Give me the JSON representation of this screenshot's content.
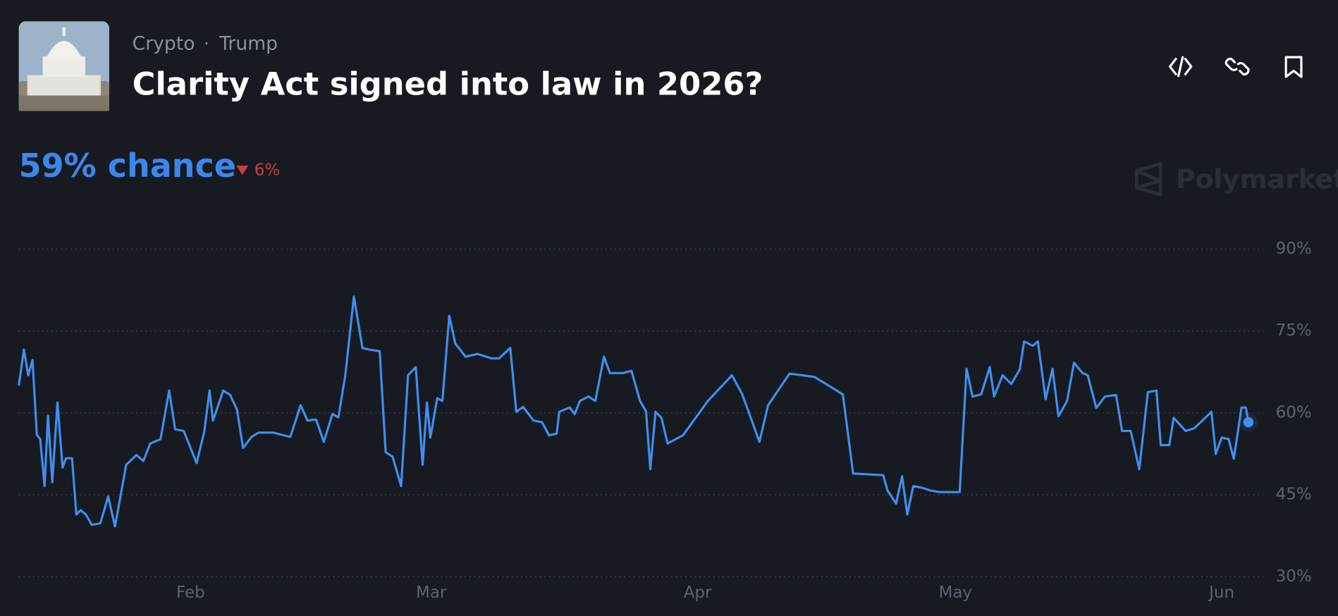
{
  "header": {
    "category": "Crypto",
    "tag": "Trump",
    "title": "Clarity Act signed into law in 2026?"
  },
  "summary": {
    "chance": "59% chance",
    "change": "6%"
  },
  "brand": "Polymarket",
  "chart_data": {
    "type": "line",
    "color": "#3f8ff0",
    "grid": true,
    "x": [
      0,
      0.6,
      1.1,
      1.6,
      2.1,
      2.5,
      3,
      3.4,
      3.9,
      4.5,
      5.1,
      5.5,
      6.2,
      6.7,
      7.2,
      7.8,
      8.5,
      9.5,
      10.4,
      11.2,
      12.5,
      13.7,
      14.5,
      15.3,
      16.5,
      17.5,
      18.2,
      19.2,
      20.7,
      21.6,
      22.2,
      22.6,
      23.8,
      24.6,
      25.4,
      26.1,
      27.1,
      27.9,
      29.6,
      31.6,
      32.8,
      33.6,
      34.6,
      35.5,
      36.5,
      37.2,
      38,
      39,
      40,
      40.8,
      42,
      42.7,
      43.5,
      44.5,
      45.3,
      46.2,
      47,
      47.5,
      47.9,
      48.7,
      49.3,
      50.1,
      50.8,
      52,
      53.4,
      55,
      55.9,
      57.2,
      57.9,
      58.7,
      59.9,
      60.9,
      61.7,
      62.6,
      62.9,
      64.1,
      64.7,
      65.3,
      66.3,
      67.1,
      68.1,
      68.8,
      70.3,
      71.3,
      72.3,
      73,
      73.5,
      74.1,
      74.8,
      75.5,
      77.3,
      80.2,
      83,
      84.2,
      86.2,
      87.2,
      89.7,
      92.6,
      95.9,
      97.1,
      100.6,
      101.1,
      102.1,
      102.8,
      103.4,
      104.1,
      105.1,
      106.1,
      107.1,
      109.5,
      110.3,
      111,
      112,
      113,
      113.5,
      114.5,
      115.5,
      116.5,
      117,
      118,
      118.6,
      119.5,
      120.3,
      121,
      122,
      122.8,
      123.8,
      124.4,
      125.4,
      126.4,
      127.7,
      128.4,
      129.4,
      130.4,
      131.4,
      132.4,
      132.9,
      133.9,
      134.4,
      135.8,
      136.8,
      138.8,
      139.3,
      140,
      140.8,
      141.4,
      142.3,
      142.8,
      143.1
    ],
    "values": [
      65,
      71.6,
      66.9,
      69.7,
      56,
      55.2,
      46.6,
      59.5,
      47.3,
      61.9,
      50,
      51.7,
      51.7,
      41.4,
      42.2,
      41.4,
      39.5,
      39.8,
      44.7,
      39.2,
      50.5,
      52.3,
      51.2,
      54.4,
      55.2,
      64.1,
      57,
      56.7,
      50.8,
      56.7,
      64.1,
      58.6,
      64.1,
      63.3,
      60.6,
      53.6,
      55.6,
      56.4,
      56.4,
      55.6,
      61.4,
      58.6,
      58.8,
      54.7,
      59.8,
      59.2,
      66.9,
      81.3,
      71.9,
      71.6,
      71.3,
      52.8,
      52,
      46.6,
      66.9,
      68.4,
      50.5,
      61.9,
      55.5,
      62.7,
      62.2,
      77.8,
      72.7,
      70.3,
      70.8,
      70,
      70,
      71.9,
      60.2,
      61.1,
      58.6,
      58.3,
      55.9,
      56.2,
      60.2,
      61,
      59.8,
      62.2,
      63,
      62.2,
      70.3,
      67.3,
      67.3,
      67.7,
      62.2,
      60.3,
      49.7,
      60.2,
      59.1,
      54.4,
      55.9,
      62.2,
      66.9,
      63.4,
      54.7,
      61.4,
      67.2,
      66.6,
      63.4,
      48.9,
      48.6,
      45.8,
      43.4,
      48.4,
      41.4,
      46.6,
      46.3,
      45.8,
      45.5,
      45.5,
      68.1,
      63,
      63.4,
      68.4,
      63,
      66.9,
      65.3,
      68,
      73.1,
      72.3,
      73.1,
      62.5,
      68.1,
      59.4,
      62.2,
      69.2,
      67.3,
      66.9,
      60.9,
      63,
      63.3,
      56.7,
      56.7,
      49.7,
      63.8,
      64.1,
      54.1,
      54.1,
      59.1,
      56.7,
      57.2,
      60.2,
      52.5,
      55.5,
      55.2,
      51.6,
      61,
      61,
      58.3
    ],
    "xlim": [
      0,
      143.1
    ],
    "xticks": [
      {
        "value": 20,
        "label": "Feb"
      },
      {
        "value": 48,
        "label": "Mar"
      },
      {
        "value": 79,
        "label": "Apr"
      },
      {
        "value": 109,
        "label": "May"
      },
      {
        "value": 140,
        "label": "Jun"
      }
    ],
    "ylim": [
      30,
      90
    ],
    "yticks": [
      {
        "value": 30,
        "label": "30%"
      },
      {
        "value": 45,
        "label": "45%"
      },
      {
        "value": 60,
        "label": "60%"
      },
      {
        "value": 75,
        "label": "75%"
      },
      {
        "value": 90,
        "label": "90%"
      }
    ]
  }
}
